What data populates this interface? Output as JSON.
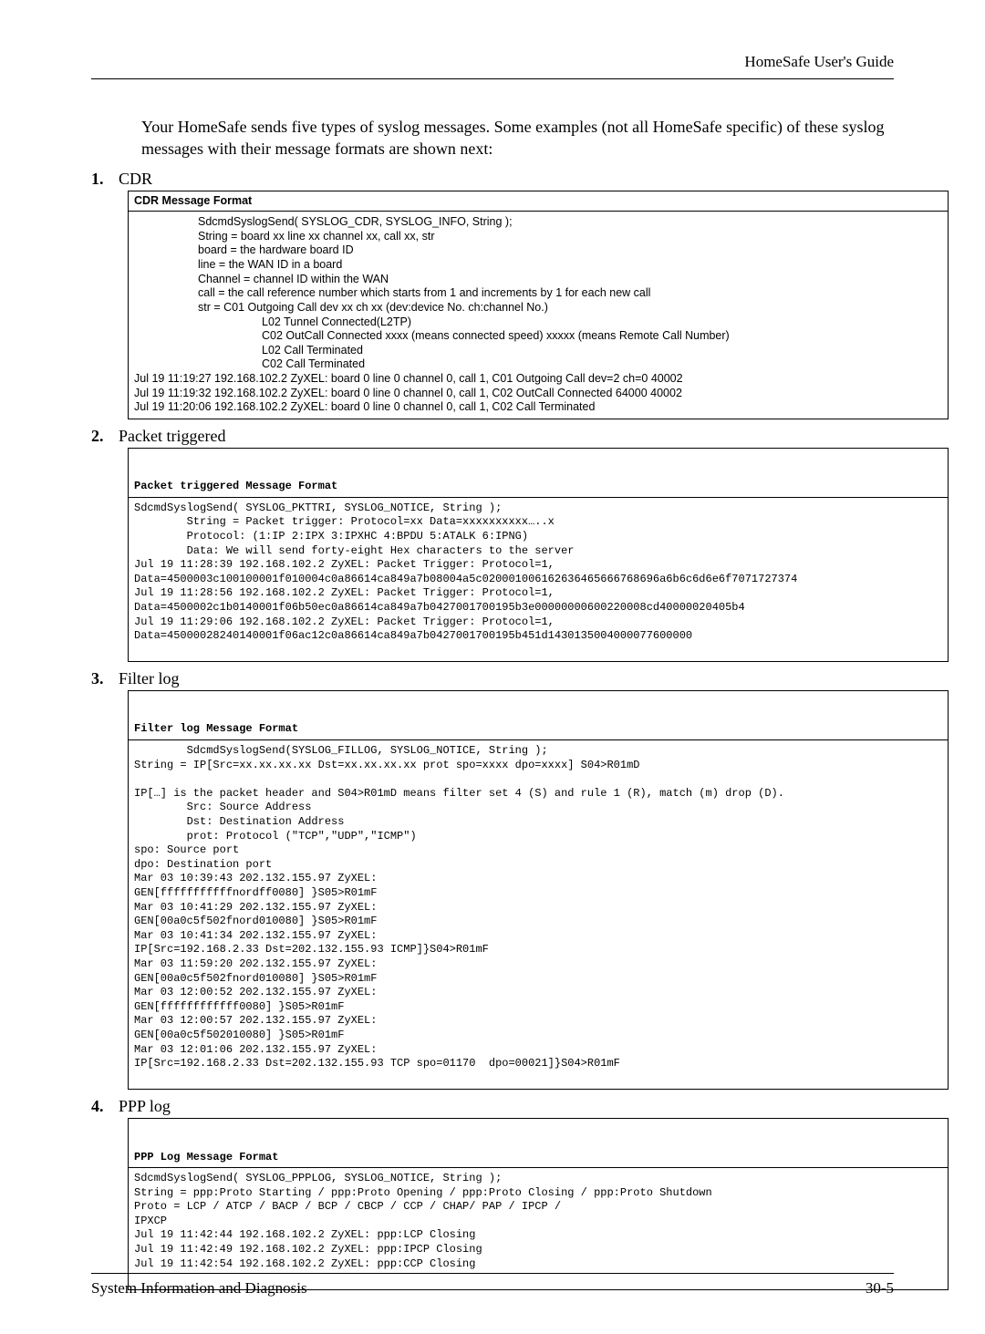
{
  "header": {
    "right": "HomeSafe User's Guide"
  },
  "intro": "Your HomeSafe sends five types of syslog messages. Some examples (not all HomeSafe specific) of these syslog messages with their message formats are shown next:",
  "sections": [
    {
      "num": "1.",
      "title": "CDR"
    },
    {
      "num": "2.",
      "title": "Packet triggered"
    },
    {
      "num": "3.",
      "title": "Filter log"
    },
    {
      "num": "4.",
      "title": "PPP log"
    }
  ],
  "cdr": {
    "hdr": "CDR Message Format",
    "l1": "SdcmdSyslogSend( SYSLOG_CDR, SYSLOG_INFO, String );",
    "l2": "String = board xx line xx channel xx, call xx, str",
    "l3": "board = the hardware board ID",
    "l4": "line = the WAN ID in a board",
    "l5": "Channel = channel ID within the WAN",
    "l6": "call = the call reference number which starts from 1 and increments by 1 for each new call",
    "l7": "str = C01 Outgoing Call dev xx ch xx (dev:device No. ch:channel No.)",
    "l8": "L02        Tunnel Connected(L2TP)",
    "l9": "C02 OutCall Connected xxxx (means connected speed) xxxxx (means Remote Call Number)",
    "l10": "L02 Call Terminated",
    "l11": "C02 Call Terminated",
    "l12": "Jul 19 11:19:27 192.168.102.2 ZyXEL: board 0 line 0 channel 0, call 1, C01 Outgoing Call dev=2 ch=0 40002",
    "l13": "Jul 19 11:19:32 192.168.102.2 ZyXEL: board 0 line 0 channel 0, call 1, C02 OutCall Connected 64000 40002",
    "l14": "Jul 19 11:20:06 192.168.102.2 ZyXEL: board 0 line 0 channel 0, call 1, C02 Call Terminated"
  },
  "pkt": {
    "hdr": "Packet triggered Message Format",
    "body": "SdcmdSyslogSend( SYSLOG_PKTTRI, SYSLOG_NOTICE, String );\n        String = Packet trigger: Protocol=xx Data=xxxxxxxxxx…..x\n        Protocol: (1:IP 2:IPX 3:IPXHC 4:BPDU 5:ATALK 6:IPNG)\n        Data: We will send forty-eight Hex characters to the server\nJul 19 11:28:39 192.168.102.2 ZyXEL: Packet Trigger: Protocol=1, Data=4500003c100100001f010004c0a86614ca849a7b08004a5c020001006162636465666768696a6b6c6d6e6f7071727374\nJul 19 11:28:56 192.168.102.2 ZyXEL: Packet Trigger: Protocol=1, Data=4500002c1b0140001f06b50ec0a86614ca849a7b0427001700195b3e00000000600220008cd40000020405b4\nJul 19 11:29:06 192.168.102.2 ZyXEL: Packet Trigger: Protocol=1, Data=45000028240140001f06ac12c0a86614ca849a7b0427001700195b451d1430135004000077600000"
  },
  "filter": {
    "hdr": "Filter log Message Format",
    "body": "        SdcmdSyslogSend(SYSLOG_FILLOG, SYSLOG_NOTICE, String );\nString = IP[Src=xx.xx.xx.xx Dst=xx.xx.xx.xx prot spo=xxxx dpo=xxxx] S04>R01mD\n\nIP[…] is the packet header and S04>R01mD means filter set 4 (S) and rule 1 (R), match (m) drop (D).\n        Src: Source Address\n        Dst: Destination Address\n        prot: Protocol (\"TCP\",\"UDP\",\"ICMP\")\nspo: Source port\ndpo: Destination port\nMar 03 10:39:43 202.132.155.97 ZyXEL:\nGEN[fffffffffffnordff0080] }S05>R01mF\nMar 03 10:41:29 202.132.155.97 ZyXEL:\nGEN[00a0c5f502fnord010080] }S05>R01mF\nMar 03 10:41:34 202.132.155.97 ZyXEL:\nIP[Src=192.168.2.33 Dst=202.132.155.93 ICMP]}S04>R01mF\nMar 03 11:59:20 202.132.155.97 ZyXEL:\nGEN[00a0c5f502fnord010080] }S05>R01mF\nMar 03 12:00:52 202.132.155.97 ZyXEL:\nGEN[ffffffffffff0080] }S05>R01mF\nMar 03 12:00:57 202.132.155.97 ZyXEL:\nGEN[00a0c5f502010080] }S05>R01mF\nMar 03 12:01:06 202.132.155.97 ZyXEL:\nIP[Src=192.168.2.33 Dst=202.132.155.93 TCP spo=01170  dpo=00021]}S04>R01mF"
  },
  "ppp": {
    "hdr": "PPP Log Message Format",
    "body": "SdcmdSyslogSend( SYSLOG_PPPLOG, SYSLOG_NOTICE, String );\nString = ppp:Proto Starting / ppp:Proto Opening / ppp:Proto Closing / ppp:Proto Shutdown\nProto = LCP / ATCP / BACP / BCP / CBCP / CCP / CHAP/ PAP / IPCP /\nIPXCP\nJul 19 11:42:44 192.168.102.2 ZyXEL: ppp:LCP Closing\nJul 19 11:42:49 192.168.102.2 ZyXEL: ppp:IPCP Closing\nJul 19 11:42:54 192.168.102.2 ZyXEL: ppp:CCP Closing"
  },
  "footer": {
    "left": "System Information and Diagnosis",
    "right": "30-5"
  }
}
